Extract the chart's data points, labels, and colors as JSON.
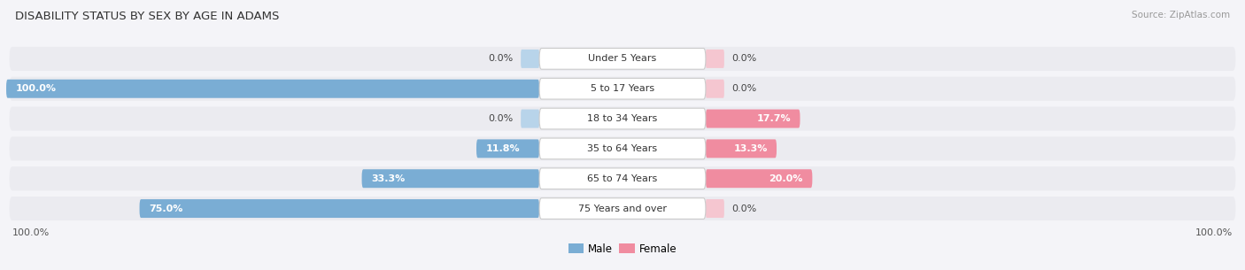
{
  "title": "DISABILITY STATUS BY SEX BY AGE IN ADAMS",
  "source": "Source: ZipAtlas.com",
  "categories": [
    "Under 5 Years",
    "5 to 17 Years",
    "18 to 34 Years",
    "35 to 64 Years",
    "65 to 74 Years",
    "75 Years and over"
  ],
  "male_values": [
    0.0,
    100.0,
    0.0,
    11.8,
    33.3,
    75.0
  ],
  "female_values": [
    0.0,
    0.0,
    17.7,
    13.3,
    20.0,
    0.0
  ],
  "male_color": "#7aadd4",
  "female_color": "#f08ca0",
  "male_color_light": "#b8d4ea",
  "female_color_light": "#f5c6d0",
  "bar_bg_color": "#e4e4ea",
  "background_color": "#f4f4f8",
  "row_bg_color": "#ebebf0",
  "max_value": 100.0,
  "title_fontsize": 9.5,
  "label_fontsize": 8.0,
  "source_fontsize": 7.5
}
